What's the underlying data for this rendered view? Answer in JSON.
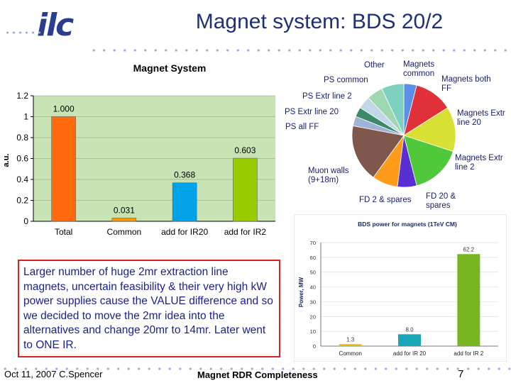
{
  "slide": {
    "title": "Magnet system: BDS 20/2",
    "logo_text": "ilc",
    "note": "Larger number of huge 2mr extraction line magnets, uncertain feasibility  & their very high kW power supplies cause the VALUE difference and so we decided to move the 2mr idea into the alternatives and change 20mr to 14mr. Later went to ONE IR.",
    "footer_left": "Oct 11, 2007  C.Spencer",
    "footer_center": "Magnet RDR Completeness",
    "page_number": "7"
  },
  "chart_data": [
    {
      "type": "bar",
      "title": "Magnet System",
      "ylabel": "a.u.",
      "xlabel": "",
      "categories": [
        "Total",
        "Common",
        "add for IR20",
        "add for IR2"
      ],
      "values": [
        1.0,
        0.031,
        0.368,
        0.603
      ],
      "data_labels": [
        "1.000",
        "0.031",
        "0.368",
        "0.603"
      ],
      "colors": [
        "#ff6a0c",
        "#ff9900",
        "#00a3e8",
        "#99cc00"
      ],
      "ylim": [
        0,
        1.2
      ],
      "yticks": [
        "0",
        "0.2",
        "0.4",
        "0.6",
        "0.8",
        "1",
        "1.2"
      ],
      "grid": true,
      "plot_background": "#c8e3b4",
      "legend": "none"
    },
    {
      "type": "pie",
      "labels": [
        "Magnets common",
        "Magnets both FF",
        "Magnets Extr line 20",
        "Magnets Extr line 2",
        "FD 20 & spares",
        "FD 2 & spares",
        "Muon walls (9+18m)",
        "PS all FF",
        "PS Extr line 20",
        "PS Extr line 2",
        "PS common",
        "Other"
      ],
      "values": [
        4,
        12,
        14,
        16,
        6,
        8,
        18,
        3,
        3,
        4,
        5,
        7
      ],
      "colors": [
        "#5b8fe6",
        "#e0303a",
        "#d9e034",
        "#4fc83a",
        "#5a2fd2",
        "#ff9a1a",
        "#80574d",
        "#9fb3d6",
        "#3a8a6a",
        "#c0d8e8",
        "#9fd8b0",
        "#7fd0c0"
      ],
      "legend": "outside labels"
    },
    {
      "type": "bar",
      "title": "BDS power for magnets (1TeV CM)",
      "ylabel": "Power, MW",
      "xlabel": "",
      "categories": [
        "Common",
        "add for IR 20",
        "add for IR 2"
      ],
      "values": [
        1.3,
        8.0,
        62.2
      ],
      "data_labels": [
        "1.3",
        "8.0",
        "62.2"
      ],
      "colors": [
        "#e6b800",
        "#18a7b8",
        "#79b520"
      ],
      "ylim": [
        0,
        70
      ],
      "yticks": [
        "0",
        "10",
        "20",
        "30",
        "40",
        "50",
        "60",
        "70"
      ],
      "grid": true,
      "legend": "none"
    }
  ]
}
